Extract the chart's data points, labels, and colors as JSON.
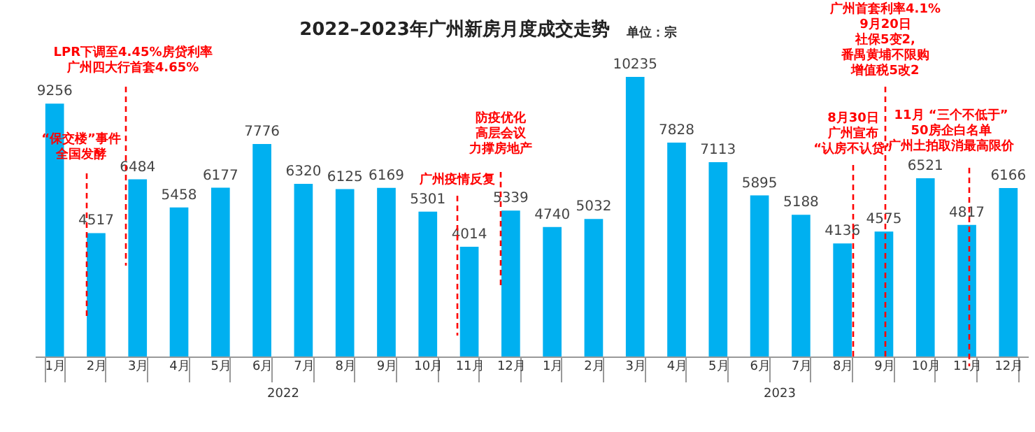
{
  "chart_data": {
    "type": "bar",
    "title": "2022–2023年广州新房月度成交走势",
    "subtitle": "单位：宗",
    "categories": [
      "1月",
      "2月",
      "3月",
      "4月",
      "5月",
      "6月",
      "7月",
      "8月",
      "9月",
      "10月",
      "11月",
      "12月",
      "1月",
      "2月",
      "3月",
      "4月",
      "5月",
      "6月",
      "7月",
      "8月",
      "9月",
      "10月",
      "11月",
      "12月"
    ],
    "values": [
      9256,
      4517,
      6484,
      5458,
      6177,
      7776,
      6320,
      6125,
      6169,
      5301,
      4014,
      5339,
      4740,
      5032,
      10235,
      7828,
      7113,
      5895,
      5188,
      4136,
      4575,
      6521,
      4817,
      6166
    ],
    "color": "#00b0f0",
    "data_labels": true,
    "annotations": [
      "LPR下调至4.45%房贷利率",
      "广州四大行首套4.65%",
      "“保交楼”事件",
      "全国发酵",
      "广州疫情反复",
      "防疫优化",
      "高层会议",
      "力撑房地产",
      "8月30日",
      "广州宣布",
      "“认房不认贷”",
      "广州首套利率4.1%",
      "9月20日",
      "社保5变2,",
      "番禺黄埔不限购",
      "增值税5改2",
      "11月 “三个不低于”",
      "50房企白名单",
      "广州土拍取消最高限价",
      "2022",
      "2023"
    ]
  }
}
